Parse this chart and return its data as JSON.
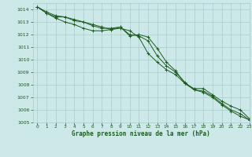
{
  "bg_color": "#cce8e8",
  "grid_color": "#aacccc",
  "line_color": "#1e5c1e",
  "title": "Graphe pression niveau de la mer (hPa)",
  "xlim": [
    -0.5,
    23
  ],
  "ylim": [
    1005,
    1014.5
  ],
  "yticks": [
    1005,
    1006,
    1007,
    1008,
    1009,
    1010,
    1011,
    1012,
    1013,
    1014
  ],
  "xticks": [
    0,
    1,
    2,
    3,
    4,
    5,
    6,
    7,
    8,
    9,
    10,
    11,
    12,
    13,
    14,
    15,
    16,
    17,
    18,
    19,
    20,
    21,
    22,
    23
  ],
  "series": [
    [
      1014.2,
      1013.7,
      1013.4,
      1013.4,
      1013.1,
      1013.0,
      1012.7,
      1012.5,
      1012.5,
      1012.6,
      1012.0,
      1011.9,
      1011.5,
      1010.3,
      1009.5,
      1009.0,
      1008.2,
      1007.6,
      1007.5,
      1007.1,
      1006.5,
      1006.0,
      1005.7,
      1005.2
    ],
    [
      1014.2,
      1013.7,
      1013.3,
      1013.0,
      1012.8,
      1012.5,
      1012.3,
      1012.3,
      1012.4,
      1012.5,
      1012.3,
      1011.8,
      1010.5,
      1009.8,
      1009.2,
      1008.8,
      1008.1,
      1007.6,
      1007.4,
      1007.0,
      1006.4,
      1005.9,
      1005.5,
      1005.2
    ],
    [
      1014.2,
      1013.8,
      1013.5,
      1013.4,
      1013.2,
      1013.0,
      1012.8,
      1012.6,
      1012.4,
      1012.6,
      1011.9,
      1012.0,
      1011.8,
      1010.9,
      1009.8,
      1009.1,
      1008.1,
      1007.7,
      1007.7,
      1007.2,
      1006.7,
      1006.3,
      1006.0,
      1005.3
    ]
  ]
}
